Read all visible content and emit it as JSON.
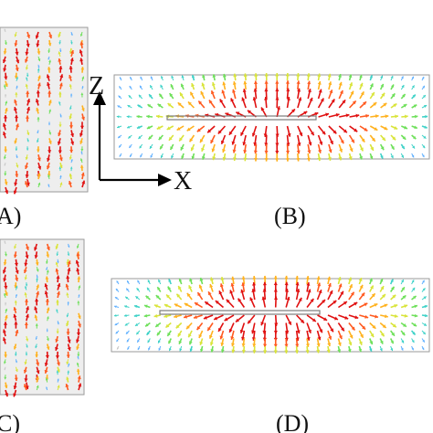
{
  "panels": [
    {
      "id": "A",
      "label": "A)"
    },
    {
      "id": "B",
      "label": "(B)"
    },
    {
      "id": "C",
      "label": "C)"
    },
    {
      "id": "D",
      "label": "(D)"
    }
  ],
  "axes": {
    "vertical": "Z",
    "horizontal": "X"
  },
  "colors": {
    "frame": "#9a9a9a",
    "slot": "#8a8a8a",
    "ramp": [
      "#c8c8c8",
      "#5fb0ff",
      "#3fd2c8",
      "#6ee05a",
      "#d9e43a",
      "#ffb21f",
      "#ff5a1f",
      "#e01010"
    ]
  }
}
